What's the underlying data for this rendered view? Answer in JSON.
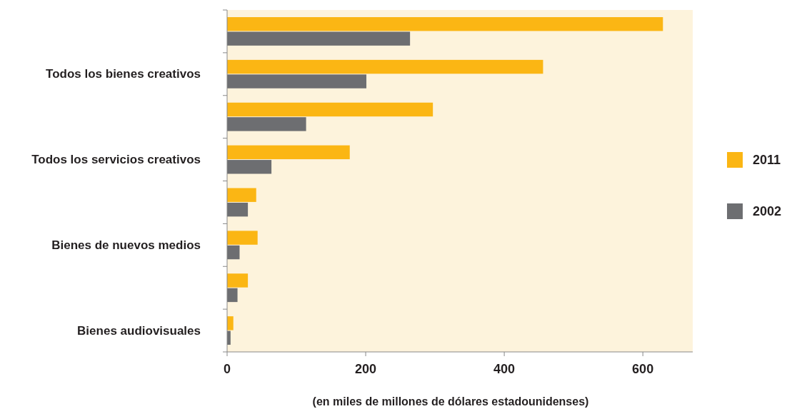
{
  "chart_data": {
    "type": "bar",
    "orientation": "horizontal",
    "xlabel": "(en miles de millones de dólares estadounidenses)",
    "categories": [
      null,
      "Todos los bienes creativos",
      null,
      "Todos los servicios creativos",
      null,
      "Bienes de nuevos medios",
      null,
      "Bienes audiovisuales"
    ],
    "series": [
      {
        "name": "2011",
        "color": "#fbb614",
        "values": [
          629,
          456,
          297,
          177,
          42,
          44,
          30,
          9
        ]
      },
      {
        "name": "2002",
        "color": "#6d6e71",
        "values": [
          264,
          201,
          114,
          64,
          30,
          18,
          15,
          5
        ]
      }
    ],
    "xlim": [
      0,
      672
    ],
    "xticks": [
      0,
      200,
      400,
      600
    ],
    "grid": false,
    "legend": "right"
  }
}
